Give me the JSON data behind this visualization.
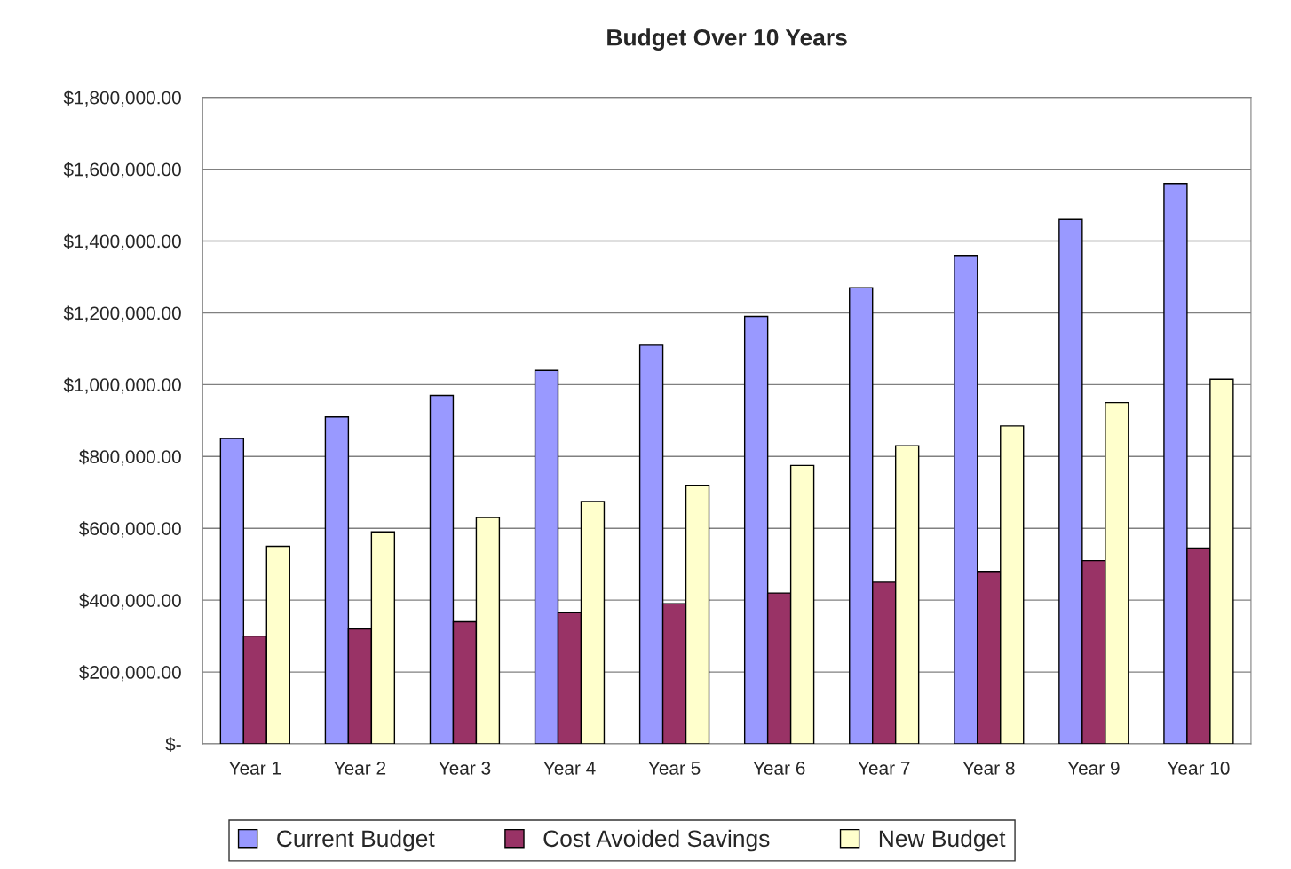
{
  "chart_data": {
    "type": "bar",
    "title": "Budget Over 10 Years",
    "categories": [
      "Year 1",
      "Year 2",
      "Year 3",
      "Year 4",
      "Year 5",
      "Year 6",
      "Year 7",
      "Year 8",
      "Year 9",
      "Year 10"
    ],
    "series": [
      {
        "name": "Current Budget",
        "color": "#9999ff",
        "values": [
          850000,
          910000,
          970000,
          1040000,
          1110000,
          1190000,
          1270000,
          1360000,
          1460000,
          1560000
        ]
      },
      {
        "name": "Cost Avoided Savings",
        "color": "#993366",
        "values": [
          300000,
          320000,
          340000,
          365000,
          390000,
          420000,
          450000,
          480000,
          510000,
          545000
        ]
      },
      {
        "name": "New Budget",
        "color": "#ffffcc",
        "values": [
          550000,
          590000,
          630000,
          675000,
          720000,
          775000,
          830000,
          885000,
          950000,
          1015000
        ]
      }
    ],
    "ylim": [
      0,
      1800000
    ],
    "yticks": [
      {
        "value": 0,
        "label": "$-"
      },
      {
        "value": 200000,
        "label": "$200,000.00"
      },
      {
        "value": 400000,
        "label": "$400,000.00"
      },
      {
        "value": 600000,
        "label": "$600,000.00"
      },
      {
        "value": 800000,
        "label": "$800,000.00"
      },
      {
        "value": 1000000,
        "label": "$1,000,000.00"
      },
      {
        "value": 1200000,
        "label": "$1,200,000.00"
      },
      {
        "value": 1400000,
        "label": "$1,400,000.00"
      },
      {
        "value": 1600000,
        "label": "$1,600,000.00"
      },
      {
        "value": 1800000,
        "label": "$1,800,000.00"
      }
    ],
    "grid": "y",
    "legend": "bottom"
  }
}
